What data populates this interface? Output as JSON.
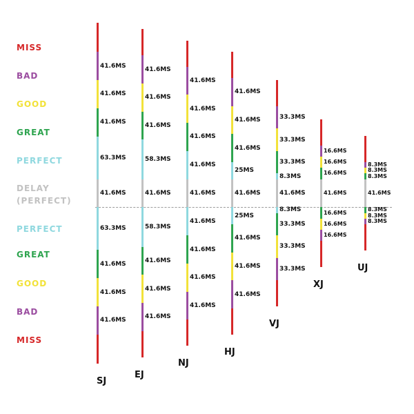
{
  "colors": {
    "miss": "#d62728",
    "bad": "#9b4da0",
    "good": "#f2e23a",
    "great": "#2ea44f",
    "perfect": "#8fd8df",
    "delay": "#c2c2c2"
  },
  "legend": [
    {
      "key": "miss",
      "label": "MISS"
    },
    {
      "key": "bad",
      "label": "BAD"
    },
    {
      "key": "good",
      "label": "GOOD"
    },
    {
      "key": "great",
      "label": "GREAT"
    },
    {
      "key": "perfect",
      "label": "PERFECT"
    },
    {
      "key": "delay",
      "label": "DELAY\n(PERFECT)"
    },
    {
      "key": "perfect",
      "label": "PERFECT"
    },
    {
      "key": "great",
      "label": "GREAT"
    },
    {
      "key": "good",
      "label": "GOOD"
    },
    {
      "key": "bad",
      "label": "BAD"
    },
    {
      "key": "miss",
      "label": "MISS"
    }
  ],
  "columns": [
    {
      "name": "SJ",
      "values": [
        "41.6MS",
        "41.6MS",
        "41.6MS",
        "63.3MS",
        "41.6MS",
        "63.3MS",
        "41.6MS",
        "41.6MS",
        "41.6MS"
      ]
    },
    {
      "name": "EJ",
      "values": [
        "41.6MS",
        "41.6MS",
        "41.6MS",
        "58.3MS",
        "41.6MS",
        "58.3MS",
        "41.6MS",
        "41.6MS",
        "41.6MS"
      ]
    },
    {
      "name": "NJ",
      "values": [
        "41.6MS",
        "41.6MS",
        "41.6MS",
        "41.6MS",
        "41.6MS",
        "41.6MS",
        "41.6MS",
        "41.6MS",
        "41.6MS"
      ]
    },
    {
      "name": "HJ",
      "values": [
        "41.6MS",
        "41.6MS",
        "41.6MS",
        "25MS",
        "41.6MS",
        "25MS",
        "41.6MS",
        "41.6MS",
        "41.6MS"
      ]
    },
    {
      "name": "VJ",
      "values": [
        "33.3MS",
        "33.3MS",
        "33.3MS",
        "8.3MS",
        "41.6MS",
        "8.3MS",
        "33.3MS",
        "33.3MS",
        "33.3MS"
      ]
    },
    {
      "name": "XJ",
      "values": [
        "16.6MS",
        "16.6MS",
        "16.6MS",
        "",
        "41.6MS",
        "",
        "16.6MS",
        "16.6MS",
        "16.6MS"
      ]
    },
    {
      "name": "UJ",
      "values": [
        "8.3MS",
        "8.3MS",
        "8.3MS",
        "",
        "41.6MS",
        "",
        "8.3MS",
        "8.3MS",
        "8.3MS"
      ]
    }
  ],
  "chart_data": {
    "type": "timing-window-diagram",
    "segments": [
      "BAD",
      "GOOD",
      "GREAT",
      "PERFECT",
      "DELAY (PERFECT)",
      "PERFECT",
      "GREAT",
      "GOOD",
      "BAD"
    ],
    "series": [
      {
        "name": "SJ",
        "values": [
          41.6,
          41.6,
          41.6,
          63.3,
          41.6,
          63.3,
          41.6,
          41.6,
          41.6
        ]
      },
      {
        "name": "EJ",
        "values": [
          41.6,
          41.6,
          41.6,
          58.3,
          41.6,
          58.3,
          41.6,
          41.6,
          41.6
        ]
      },
      {
        "name": "NJ",
        "values": [
          41.6,
          41.6,
          41.6,
          41.6,
          41.6,
          41.6,
          41.6,
          41.6,
          41.6
        ]
      },
      {
        "name": "HJ",
        "values": [
          41.6,
          41.6,
          41.6,
          25,
          41.6,
          25,
          41.6,
          41.6,
          41.6
        ]
      },
      {
        "name": "VJ",
        "values": [
          33.3,
          33.3,
          33.3,
          8.3,
          41.6,
          8.3,
          33.3,
          33.3,
          33.3
        ]
      },
      {
        "name": "XJ",
        "values": [
          16.6,
          16.6,
          16.6,
          0,
          41.6,
          0,
          16.6,
          16.6,
          16.6
        ]
      },
      {
        "name": "UJ",
        "values": [
          8.3,
          8.3,
          8.3,
          0,
          41.6,
          0,
          8.3,
          8.3,
          8.3
        ]
      }
    ]
  }
}
